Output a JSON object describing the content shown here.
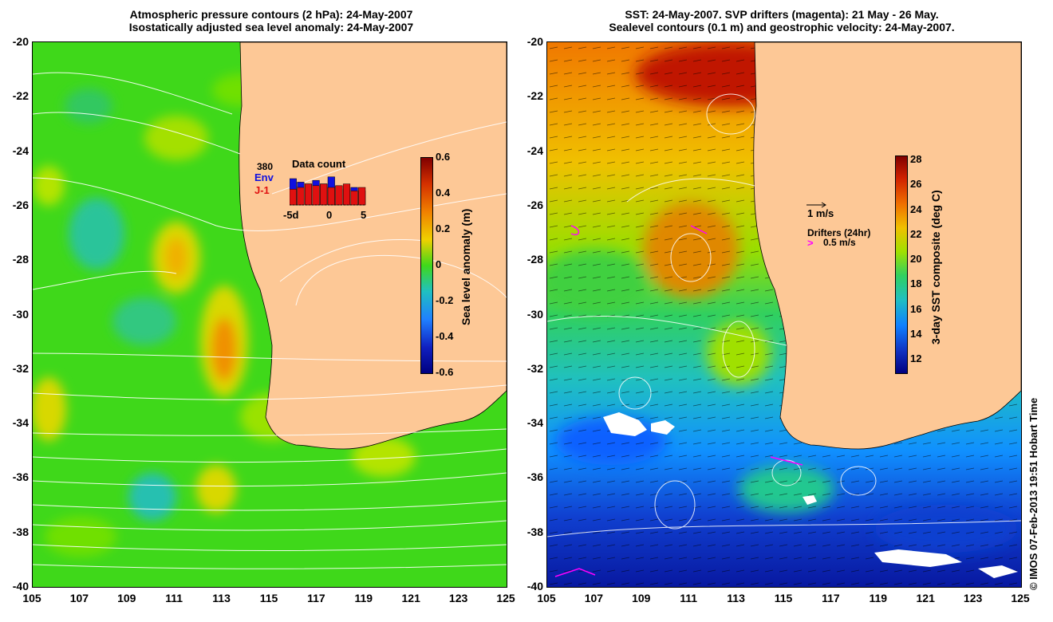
{
  "left_panel": {
    "title_line1": "Atmospheric pressure contours (2 hPa): 24-May-2007",
    "title_line2": "Isostatically adjusted sea level anomaly: 24-May-2007",
    "colorbar": {
      "label": "Sea level anomaly (m)",
      "ticks": [
        "0.6",
        "0.4",
        "0.2",
        "0",
        "-0.2",
        "-0.4",
        "-0.6"
      ]
    },
    "data_count": {
      "title": "Data count",
      "max_label": "380",
      "env_label": "Env",
      "j1_label": "J-1",
      "x_ticks": [
        "-5d",
        "0",
        "5"
      ],
      "env_color": "#1010e0",
      "j1_color": "#e01010",
      "env_values": [
        0.75,
        0.65,
        0.6,
        0.7,
        0.6,
        0.8,
        0.55,
        0.45,
        0.5,
        0.4
      ],
      "j1_values": [
        0.45,
        0.5,
        0.6,
        0.55,
        0.6,
        0.5,
        0.55,
        0.6,
        0.4,
        0.5
      ]
    }
  },
  "right_panel": {
    "title_line1": "SST: 24-May-2007. SVP drifters (magenta): 21 May - 26 May.",
    "title_line2": "Sealevel contours (0.1 m) and geostrophic velocity: 24-May-2007.",
    "colorbar": {
      "label": "3-day SST composite (deg C)",
      "ticks": [
        "28",
        "26",
        "24",
        "22",
        "20",
        "18",
        "16",
        "14",
        "12"
      ]
    },
    "velocity_scale": "1 m/s",
    "drifters_label": "Drifters (24hr)",
    "drifter_speed": "0.5 m/s",
    "drifter_color": "#ff00ff"
  },
  "axes": {
    "y_ticks": [
      "-20",
      "-22",
      "-24",
      "-26",
      "-28",
      "-30",
      "-32",
      "-34",
      "-36",
      "-38",
      "-40"
    ],
    "x_ticks": [
      "105",
      "107",
      "109",
      "111",
      "113",
      "115",
      "117",
      "119",
      "121",
      "123",
      "125"
    ]
  },
  "credit": "© IMOS 07-Feb-2013 19:51 Hobart Time",
  "colors": {
    "land": "#fdc896",
    "ocean_green": "#3fd81a"
  }
}
